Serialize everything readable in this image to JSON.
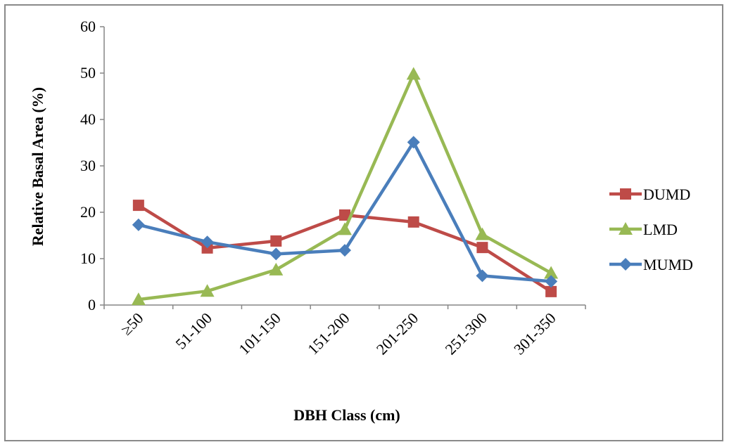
{
  "chart_data": {
    "type": "line",
    "title": "",
    "xlabel": "DBH Class (cm)",
    "ylabel": "Relative Basal Area (%)",
    "categories": [
      "≥50",
      "51-100",
      "101-150",
      "151-200",
      "201-250",
      "251-300",
      "301-350"
    ],
    "ylim": [
      0,
      60
    ],
    "yticks": [
      0,
      10,
      20,
      30,
      40,
      50,
      60
    ],
    "grid": false,
    "legend_position": "right",
    "series": [
      {
        "name": "DUMD",
        "color": "#be4b48",
        "marker": "square",
        "values": [
          21.5,
          12.3,
          13.8,
          19.4,
          17.9,
          12.4,
          2.9
        ]
      },
      {
        "name": "LMD",
        "color": "#98b954",
        "marker": "triangle",
        "values": [
          1.2,
          3.0,
          7.6,
          16.3,
          49.8,
          15.2,
          6.9
        ]
      },
      {
        "name": "MUMD",
        "color": "#4a7ebb",
        "marker": "diamond",
        "values": [
          17.3,
          13.6,
          11.0,
          11.8,
          35.1,
          6.3,
          5.1
        ]
      }
    ]
  }
}
